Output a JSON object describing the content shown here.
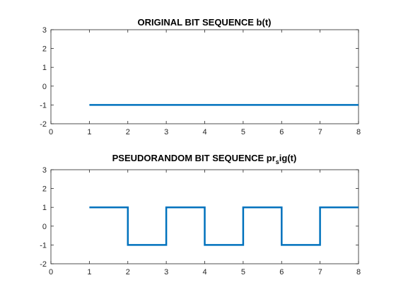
{
  "chart_data": [
    {
      "type": "line",
      "title_main": "ORIGINAL BIT SEQUENCE b(t)",
      "xlim": [
        0,
        8
      ],
      "ylim": [
        -2,
        3
      ],
      "xticks": [
        "0",
        "1",
        "2",
        "3",
        "4",
        "5",
        "6",
        "7",
        "8"
      ],
      "yticks": [
        "-2",
        "-1",
        "0",
        "1",
        "2",
        "3"
      ],
      "color": "#0072BD",
      "series": [
        {
          "x": [
            1,
            8
          ],
          "y": [
            -1,
            -1
          ]
        }
      ]
    },
    {
      "type": "line",
      "title_main": "PSEUDORANDOM BIT SEQUENCE pr",
      "title_sub": "s",
      "title_end": "ig(t)",
      "xlim": [
        0,
        8
      ],
      "ylim": [
        -2,
        3
      ],
      "xticks": [
        "0",
        "1",
        "2",
        "3",
        "4",
        "5",
        "6",
        "7",
        "8"
      ],
      "yticks": [
        "-2",
        "-1",
        "0",
        "1",
        "2",
        "3"
      ],
      "color": "#0072BD",
      "series": [
        {
          "x": [
            1,
            2,
            2,
            3,
            3,
            4,
            4,
            5,
            5,
            6,
            6,
            7,
            7,
            8
          ],
          "y": [
            1,
            1,
            -1,
            -1,
            1,
            1,
            -1,
            -1,
            1,
            1,
            -1,
            -1,
            1,
            1
          ]
        }
      ]
    }
  ]
}
